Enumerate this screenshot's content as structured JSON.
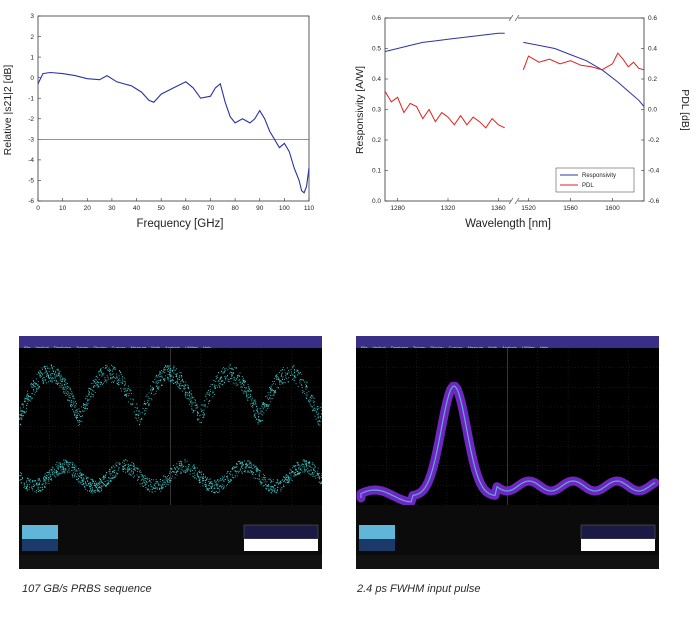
{
  "chart_data": [
    {
      "type": "line",
      "id": "s21",
      "xlabel": "Frequency  [GHz]",
      "ylabel": "Relative |s21|2 [dB]",
      "xlim": [
        0,
        110
      ],
      "ylim": [
        -6,
        3
      ],
      "xticks": [
        "0",
        "10",
        "20",
        "30",
        "40",
        "50",
        "60",
        "70",
        "80",
        "90",
        "100",
        "110"
      ],
      "yticks": [
        "3",
        "2",
        "1",
        "0",
        "-1",
        "-2",
        "-3",
        "-4",
        "-5",
        "-6"
      ],
      "grid": false,
      "reference_line": -3,
      "series": [
        {
          "name": "|s21|",
          "color": "#2c33a6",
          "x": [
            0,
            2,
            5,
            10,
            15,
            20,
            25,
            28,
            32,
            38,
            42,
            45,
            47,
            50,
            55,
            60,
            63,
            66,
            70,
            72,
            74,
            76,
            78,
            80,
            83,
            86,
            88,
            90,
            92,
            94,
            96,
            98,
            100,
            102,
            104,
            106,
            107,
            108,
            109,
            110
          ],
          "y": [
            -0.3,
            0.2,
            0.25,
            0.2,
            0.1,
            -0.05,
            -0.1,
            0.1,
            -0.2,
            -0.4,
            -0.7,
            -1.1,
            -1.2,
            -0.8,
            -0.5,
            -0.2,
            -0.5,
            -1.0,
            -0.9,
            -0.5,
            -0.3,
            -1.2,
            -1.9,
            -2.2,
            -2.0,
            -2.2,
            -2.0,
            -1.6,
            -2.0,
            -2.6,
            -3.0,
            -3.4,
            -3.2,
            -3.6,
            -4.4,
            -5.0,
            -5.5,
            -5.6,
            -5.3,
            -4.4
          ]
        }
      ]
    },
    {
      "type": "line",
      "id": "responsivity",
      "xlabel": "Wavelength  [nm]",
      "ylabel": "Responsivity  [A/W]",
      "y2label": "PDL  [dB]",
      "ylim": [
        0.0,
        0.6
      ],
      "y2lim": [
        -0.6,
        0.6
      ],
      "yticks": [
        "0.6",
        "0.5",
        "0.4",
        "0.3",
        "0.2",
        "0.1",
        "0.0"
      ],
      "y2ticks": [
        "0.6",
        "0.4",
        "0.2",
        "0.0",
        "-0.2",
        "-0.4",
        "-0.6"
      ],
      "segments": [
        {
          "xlim": [
            1270,
            1370
          ],
          "xticks": [
            "1280",
            "1320",
            "1360"
          ]
        },
        {
          "xlim": [
            1510,
            1630
          ],
          "xticks": [
            "1520",
            "1560",
            "1600"
          ]
        }
      ],
      "legend_position": "bottom-right",
      "series": [
        {
          "name": "Responsivity",
          "axis": "left",
          "color": "#2c33a6",
          "x1": [
            1270,
            1280,
            1290,
            1300,
            1310,
            1320,
            1330,
            1340,
            1350,
            1360,
            1365
          ],
          "y1": [
            0.49,
            0.5,
            0.51,
            0.52,
            0.525,
            0.53,
            0.535,
            0.54,
            0.545,
            0.55,
            0.55
          ],
          "x2": [
            1515,
            1530,
            1545,
            1560,
            1575,
            1590,
            1605,
            1615,
            1625,
            1630
          ],
          "y2": [
            0.52,
            0.51,
            0.5,
            0.48,
            0.46,
            0.43,
            0.39,
            0.36,
            0.33,
            0.31
          ]
        },
        {
          "name": "PDL",
          "axis": "right",
          "color": "#e0201c",
          "x1": [
            1270,
            1275,
            1280,
            1285,
            1290,
            1295,
            1300,
            1305,
            1310,
            1315,
            1320,
            1325,
            1330,
            1335,
            1340,
            1345,
            1350,
            1355,
            1360,
            1365
          ],
          "y1": [
            0.12,
            0.05,
            0.08,
            -0.02,
            0.04,
            0.02,
            -0.06,
            0.0,
            -0.08,
            -0.02,
            -0.05,
            -0.1,
            -0.04,
            -0.1,
            -0.05,
            -0.08,
            -0.12,
            -0.06,
            -0.1,
            -0.12
          ],
          "x2": [
            1515,
            1520,
            1530,
            1540,
            1550,
            1560,
            1570,
            1580,
            1590,
            1600,
            1605,
            1610,
            1615,
            1620,
            1625,
            1630
          ],
          "y2": [
            0.26,
            0.35,
            0.31,
            0.33,
            0.3,
            0.32,
            0.29,
            0.28,
            0.26,
            0.3,
            0.37,
            0.33,
            0.28,
            0.31,
            0.27,
            0.26
          ]
        }
      ]
    }
  ],
  "scopes": [
    {
      "menu": [
        "File",
        "Vertical",
        "Timebase",
        "Trigger",
        "Display",
        "Cursors",
        "Measure",
        "Math",
        "Analysis",
        "Utilities",
        "Help"
      ],
      "caption": "107 GB/s PRBS sequence"
    },
    {
      "menu": [
        "File",
        "Vertical",
        "Timebase",
        "Trigger",
        "Display",
        "Cursors",
        "Measure",
        "Math",
        "Analysis",
        "Utilities",
        "Help"
      ],
      "caption": "2.4 ps FWHM input pulse"
    }
  ],
  "colors": {
    "scope_menu": "#3a2f86",
    "eye_trace": "#3fd0d0",
    "pulse_trace": "#7a2bd6"
  }
}
